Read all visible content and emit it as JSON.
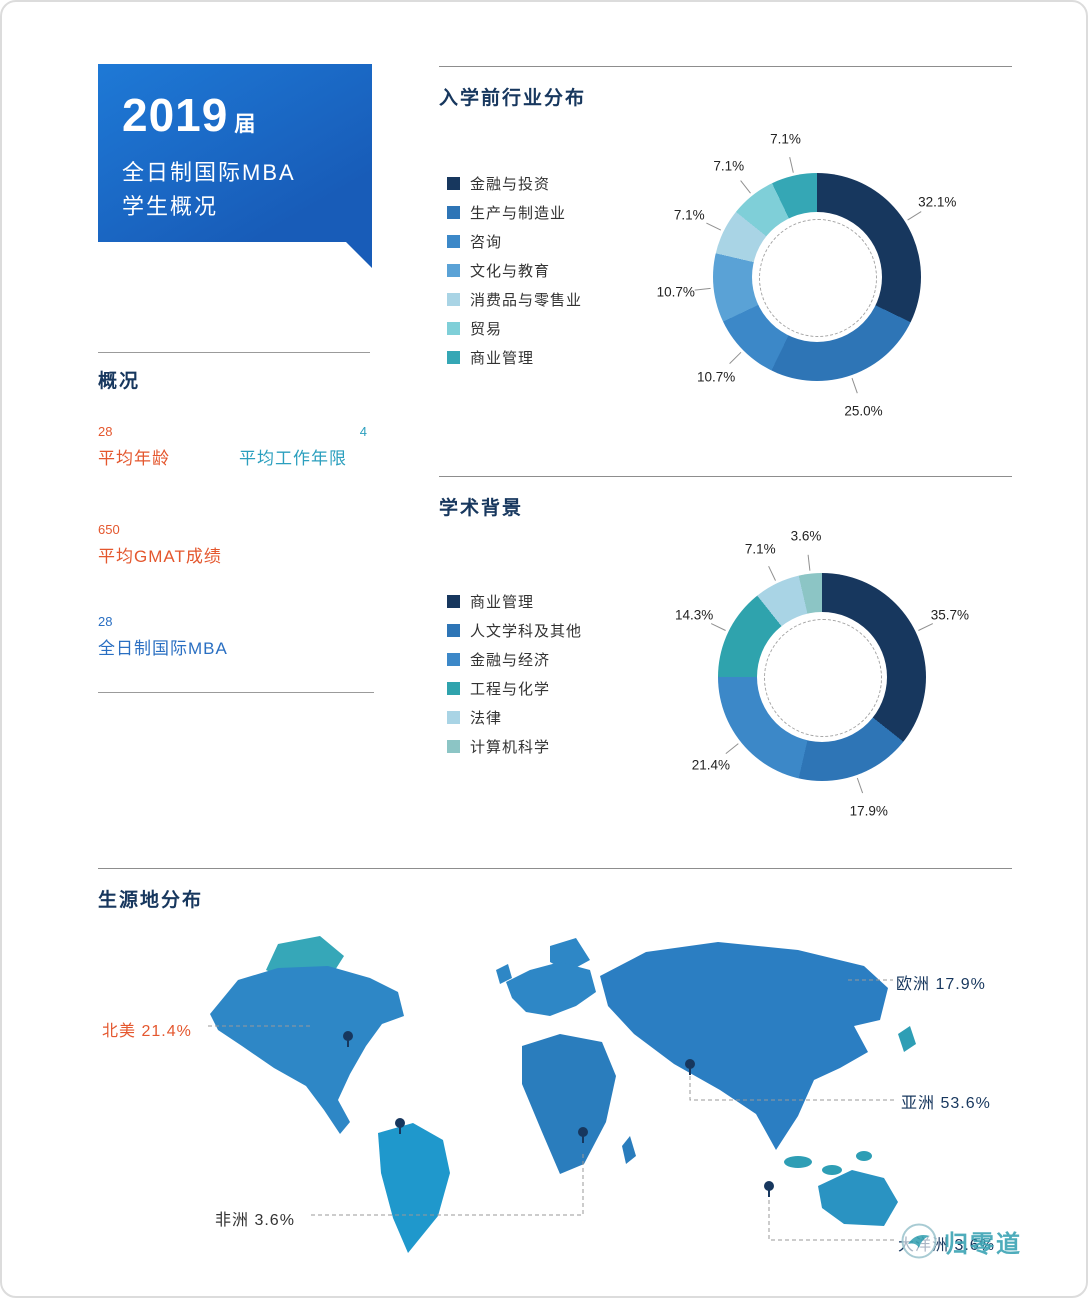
{
  "banner": {
    "year": "2019",
    "year_suffix": "届",
    "line1": "全日制国际MBA",
    "line2": "学生概况"
  },
  "overview": {
    "title": "概况",
    "stats": [
      {
        "value": "28",
        "label": "平均年龄",
        "color": "#e4572e"
      },
      {
        "value": "4",
        "label": "平均工作年限",
        "color": "#2b9fbe"
      },
      {
        "value": "650",
        "label": "平均GMAT成绩",
        "color": "#e4572e"
      },
      {
        "value": "28",
        "label": "全日制国际MBA",
        "color": "#2a6fc2"
      }
    ]
  },
  "chart_data": [
    {
      "type": "pie",
      "title": "入学前行业分布",
      "donut": true,
      "start_angle_deg": 0,
      "direction": "clockwise",
      "legend_position": "left",
      "series": [
        {
          "name": "金融与投资",
          "value": 32.1,
          "color": "#17375e"
        },
        {
          "name": "生产与制造业",
          "value": 25.0,
          "color": "#2e75b6"
        },
        {
          "name": "咨询",
          "value": 10.7,
          "color": "#3c88c8"
        },
        {
          "name": "文化与教育",
          "value": 10.7,
          "color": "#5aa2d6"
        },
        {
          "name": "消费品与零售业",
          "value": 7.1,
          "color": "#a9d4e5"
        },
        {
          "name": "贸易",
          "value": 7.1,
          "color": "#7fcfd8"
        },
        {
          "name": "商业管理",
          "value": 7.1,
          "color": "#35a7b5"
        }
      ]
    },
    {
      "type": "pie",
      "title": "学术背景",
      "donut": true,
      "start_angle_deg": 0,
      "direction": "clockwise",
      "legend_position": "left",
      "series": [
        {
          "name": "商业管理",
          "value": 35.7,
          "color": "#17375e"
        },
        {
          "name": "人文学科及其他",
          "value": 17.9,
          "color": "#2e75b6"
        },
        {
          "name": "金融与经济",
          "value": 21.4,
          "color": "#3c88c8"
        },
        {
          "name": "工程与化学",
          "value": 14.3,
          "color": "#2fa3ad"
        },
        {
          "name": "法律",
          "value": 7.1,
          "color": "#a9d4e5"
        },
        {
          "name": "计算机科学",
          "value": 3.6,
          "color": "#8cc5c5"
        }
      ]
    },
    {
      "type": "map",
      "title": "生源地分布",
      "regions": [
        {
          "name": "北美",
          "value": "21.4%",
          "color": "#e4572e"
        },
        {
          "name": "欧洲",
          "value": "17.9%",
          "color": "#17375e"
        },
        {
          "name": "亚洲",
          "value": "53.6%",
          "color": "#17375e"
        },
        {
          "name": "非洲",
          "value": "3.6%",
          "color": "#333333"
        },
        {
          "name": "大洋洲",
          "value": "3.6%",
          "color": "#17375e"
        }
      ]
    }
  ],
  "watermark": {
    "text": "归零道",
    "color": "#3ba4b4"
  }
}
